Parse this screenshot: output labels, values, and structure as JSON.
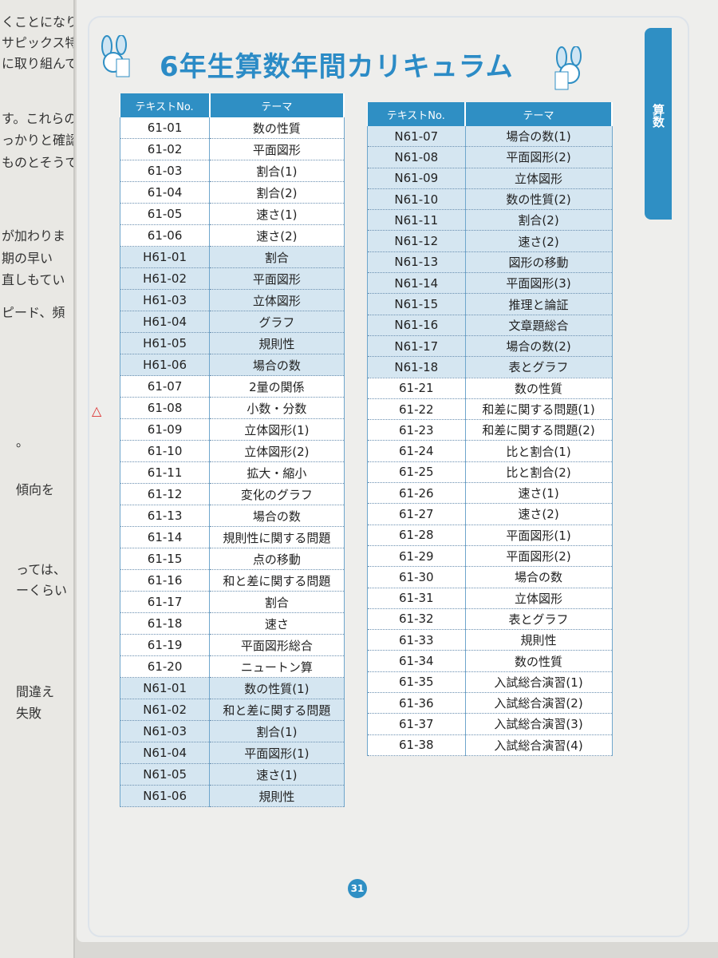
{
  "left_page_fragments": [
    "くことになりま",
    "サピックス特",
    "に取り組んで",
    "す。これらの",
    "っかりと確認",
    "ものとそうで",
    "が加わりま",
    "期の早い",
    "直しもてい",
    "ピード、頻",
    "。",
    "傾向を",
    "っては、",
    "ーくらい",
    "間違え",
    "失敗"
  ],
  "title": "6年生算数年間カリキュラム",
  "side_tab": "算数",
  "page_number": "31",
  "colors": {
    "accent": "#2f8fc4",
    "row_highlight": "#d5e6f1"
  },
  "table_left": {
    "headers": [
      "テキストNo.",
      "テーマ"
    ],
    "rows": [
      [
        "61-01",
        "数の性質"
      ],
      [
        "61-02",
        "平面図形"
      ],
      [
        "61-03",
        "割合(1)"
      ],
      [
        "61-04",
        "割合(2)"
      ],
      [
        "61-05",
        "速さ(1)"
      ],
      [
        "61-06",
        "速さ(2)"
      ],
      [
        "H61-01",
        "割合"
      ],
      [
        "H61-02",
        "平面図形"
      ],
      [
        "H61-03",
        "立体図形"
      ],
      [
        "H61-04",
        "グラフ"
      ],
      [
        "H61-05",
        "規則性"
      ],
      [
        "H61-06",
        "場合の数"
      ],
      [
        "61-07",
        "2量の関係"
      ],
      [
        "61-08",
        "小数・分数"
      ],
      [
        "61-09",
        "立体図形(1)"
      ],
      [
        "61-10",
        "立体図形(2)"
      ],
      [
        "61-11",
        "拡大・縮小"
      ],
      [
        "61-12",
        "変化のグラフ"
      ],
      [
        "61-13",
        "場合の数"
      ],
      [
        "61-14",
        "規則性に関する問題"
      ],
      [
        "61-15",
        "点の移動"
      ],
      [
        "61-16",
        "和と差に関する問題"
      ],
      [
        "61-17",
        "割合"
      ],
      [
        "61-18",
        "速さ"
      ],
      [
        "61-19",
        "平面図形総合"
      ],
      [
        "61-20",
        "ニュートン算"
      ],
      [
        "N61-01",
        "数の性質(1)"
      ],
      [
        "N61-02",
        "和と差に関する問題"
      ],
      [
        "N61-03",
        "割合(1)"
      ],
      [
        "N61-04",
        "平面図形(1)"
      ],
      [
        "N61-05",
        "速さ(1)"
      ],
      [
        "N61-06",
        "規則性"
      ]
    ]
  },
  "table_right": {
    "headers": [
      "テキストNo.",
      "テーマ"
    ],
    "rows": [
      [
        "N61-07",
        "場合の数(1)"
      ],
      [
        "N61-08",
        "平面図形(2)"
      ],
      [
        "N61-09",
        "立体図形"
      ],
      [
        "N61-10",
        "数の性質(2)"
      ],
      [
        "N61-11",
        "割合(2)"
      ],
      [
        "N61-12",
        "速さ(2)"
      ],
      [
        "N61-13",
        "図形の移動"
      ],
      [
        "N61-14",
        "平面図形(3)"
      ],
      [
        "N61-15",
        "推理と論証"
      ],
      [
        "N61-16",
        "文章題総合"
      ],
      [
        "N61-17",
        "場合の数(2)"
      ],
      [
        "N61-18",
        "表とグラフ"
      ],
      [
        "61-21",
        "数の性質"
      ],
      [
        "61-22",
        "和差に関する問題(1)"
      ],
      [
        "61-23",
        "和差に関する問題(2)"
      ],
      [
        "61-24",
        "比と割合(1)"
      ],
      [
        "61-25",
        "比と割合(2)"
      ],
      [
        "61-26",
        "速さ(1)"
      ],
      [
        "61-27",
        "速さ(2)"
      ],
      [
        "61-28",
        "平面図形(1)"
      ],
      [
        "61-29",
        "平面図形(2)"
      ],
      [
        "61-30",
        "場合の数"
      ],
      [
        "61-31",
        "立体図形"
      ],
      [
        "61-32",
        "表とグラフ"
      ],
      [
        "61-33",
        "規則性"
      ],
      [
        "61-34",
        "数の性質"
      ],
      [
        "61-35",
        "入試総合演習(1)"
      ],
      [
        "61-36",
        "入試総合演習(2)"
      ],
      [
        "61-37",
        "入試総合演習(3)"
      ],
      [
        "61-38",
        "入試総合演習(4)"
      ]
    ]
  }
}
